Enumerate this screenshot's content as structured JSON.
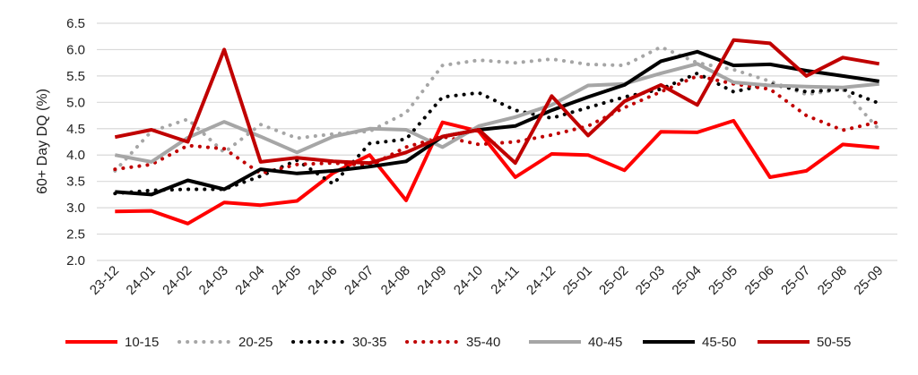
{
  "chart_data": {
    "type": "line",
    "title": "",
    "xlabel": "",
    "ylabel": "60+ Day DQ (%)",
    "ylim": [
      2.0,
      6.5
    ],
    "yticks": [
      "2.0",
      "2.5",
      "3.0",
      "3.5",
      "4.0",
      "4.5",
      "5.0",
      "5.5",
      "6.0",
      "6.5"
    ],
    "grid": true,
    "legend_position": "bottom",
    "categories": [
      "23-12",
      "24-01",
      "24-02",
      "24-03",
      "24-04",
      "24-05",
      "24-06",
      "24-07",
      "24-08",
      "24-09",
      "24-10",
      "24-11",
      "24-12",
      "25-01",
      "25-02",
      "25-03",
      "25-04",
      "25-05",
      "25-06",
      "25-07",
      "25-08",
      "25-09"
    ],
    "series": [
      {
        "name": "10-15",
        "color": "#ff0000",
        "style": "solid",
        "values": [
          2.93,
          2.94,
          2.7,
          3.1,
          3.05,
          3.13,
          3.66,
          4.0,
          3.14,
          4.62,
          4.45,
          3.58,
          4.02,
          4.0,
          3.71,
          4.44,
          4.43,
          4.65,
          3.58,
          3.7,
          4.2,
          4.14
        ]
      },
      {
        "name": "20-25",
        "color": "#a6a6a6",
        "style": "dotted",
        "values": [
          3.7,
          4.45,
          4.68,
          4.05,
          4.58,
          4.32,
          4.4,
          4.45,
          4.8,
          5.7,
          5.8,
          5.75,
          5.82,
          5.72,
          5.7,
          6.05,
          5.75,
          5.62,
          5.4,
          5.15,
          5.25,
          4.48
        ]
      },
      {
        "name": "30-35",
        "color": "#000000",
        "style": "dotted",
        "values": [
          3.27,
          3.33,
          3.35,
          3.35,
          3.6,
          3.9,
          3.45,
          4.22,
          4.3,
          5.1,
          5.18,
          4.85,
          4.7,
          4.9,
          5.1,
          5.25,
          5.55,
          5.2,
          5.35,
          5.2,
          5.25,
          4.98
        ]
      },
      {
        "name": "35-40",
        "color": "#c00000",
        "style": "dotted",
        "values": [
          3.73,
          3.82,
          4.18,
          4.12,
          3.65,
          3.82,
          3.85,
          3.8,
          4.15,
          4.35,
          4.2,
          4.25,
          4.38,
          4.55,
          4.9,
          5.2,
          5.5,
          5.35,
          5.25,
          4.75,
          4.47,
          4.63
        ]
      },
      {
        "name": "40-45",
        "color": "#a6a6a6",
        "style": "solid",
        "values": [
          4.0,
          3.87,
          4.33,
          4.63,
          4.35,
          4.05,
          4.35,
          4.5,
          4.48,
          4.15,
          4.55,
          4.72,
          4.95,
          5.32,
          5.35,
          5.55,
          5.73,
          5.38,
          5.32,
          5.3,
          5.28,
          5.35
        ]
      },
      {
        "name": "45-50",
        "color": "#000000",
        "style": "solid",
        "values": [
          3.3,
          3.25,
          3.52,
          3.35,
          3.73,
          3.65,
          3.7,
          3.78,
          3.88,
          4.35,
          4.48,
          4.55,
          4.85,
          5.1,
          5.33,
          5.78,
          5.96,
          5.7,
          5.72,
          5.6,
          5.5,
          5.4
        ]
      },
      {
        "name": "50-55",
        "color": "#c00000",
        "style": "solid",
        "values": [
          4.34,
          4.48,
          4.25,
          6.0,
          3.87,
          3.95,
          3.88,
          3.85,
          4.05,
          4.35,
          4.48,
          3.85,
          5.12,
          4.37,
          5.02,
          5.33,
          4.95,
          6.18,
          6.12,
          5.5,
          5.85,
          5.73
        ]
      }
    ]
  }
}
